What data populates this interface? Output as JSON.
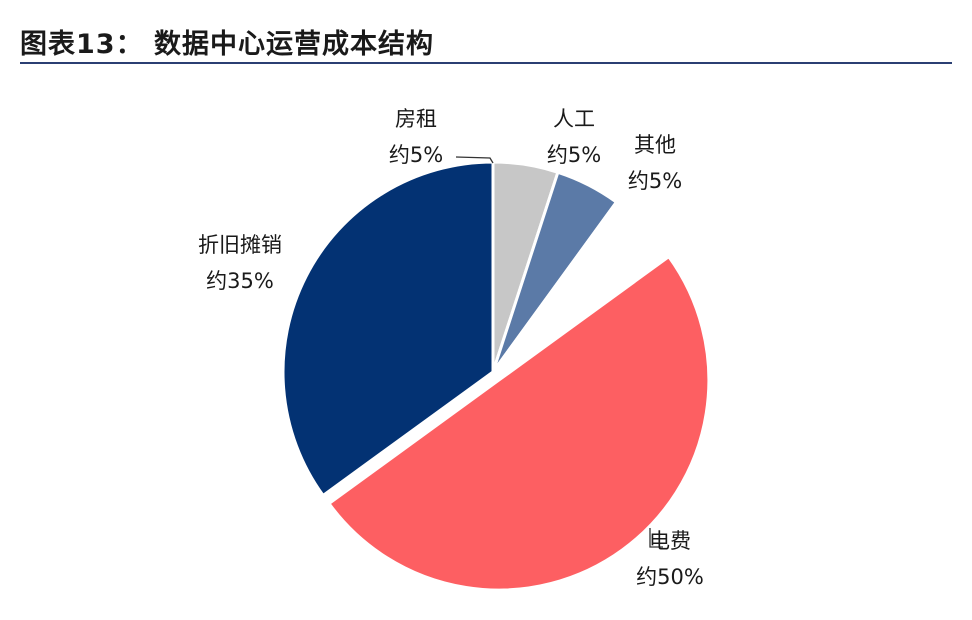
{
  "title": "图表13：  数据中心运营成本结构",
  "chart_data": {
    "type": "pie",
    "title": "数据中心运营成本结构",
    "slices": [
      {
        "name": "电费",
        "value_label": "约50%",
        "value": 50,
        "color": "#fd5f62",
        "explode": true
      },
      {
        "name": "折旧摊销",
        "value_label": "约35%",
        "value": 35,
        "color": "#033273",
        "explode": false
      },
      {
        "name": "房租",
        "value_label": "约5%",
        "value": 5,
        "color": "#c7c7c7",
        "explode": false
      },
      {
        "name": "人工",
        "value_label": "约5%",
        "value": 5,
        "color": "#5b7aa7",
        "explode": false
      },
      {
        "name": "其他",
        "value_label": "约5%",
        "value": 5,
        "color": "#ffffff",
        "explode": false
      }
    ]
  }
}
